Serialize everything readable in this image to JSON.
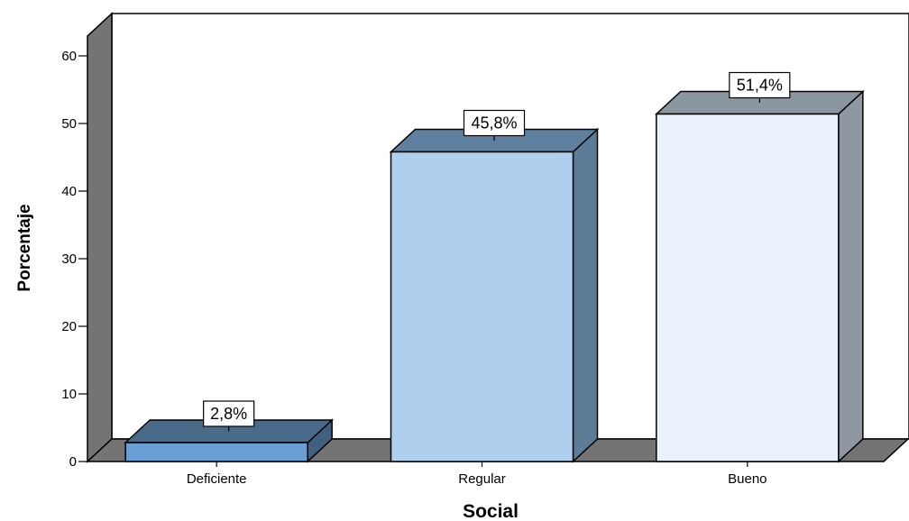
{
  "chart_data": {
    "type": "bar",
    "categories": [
      "Deficiente",
      "Regular",
      "Bueno"
    ],
    "values": [
      2.8,
      45.8,
      51.4
    ],
    "data_labels": [
      "2,8%",
      "45,8%",
      "51,4%"
    ],
    "xlabel": "Social",
    "ylabel": "Porcentaje",
    "ylim": [
      0,
      65
    ],
    "yticks": [
      0,
      10,
      20,
      30,
      40,
      50,
      60
    ],
    "grid": false,
    "three_d": true,
    "colors": {
      "bars_front": [
        "#6a9fd6",
        "#aecfee",
        "#e9f2fd"
      ],
      "bars_side": [
        "#40607e",
        "#5c7c98",
        "#8e97a2"
      ],
      "bars_top": [
        "#4a6a8a",
        "#5e7f9e",
        "#8c96a0"
      ],
      "walls": "#747474",
      "outline": "#000000"
    }
  }
}
